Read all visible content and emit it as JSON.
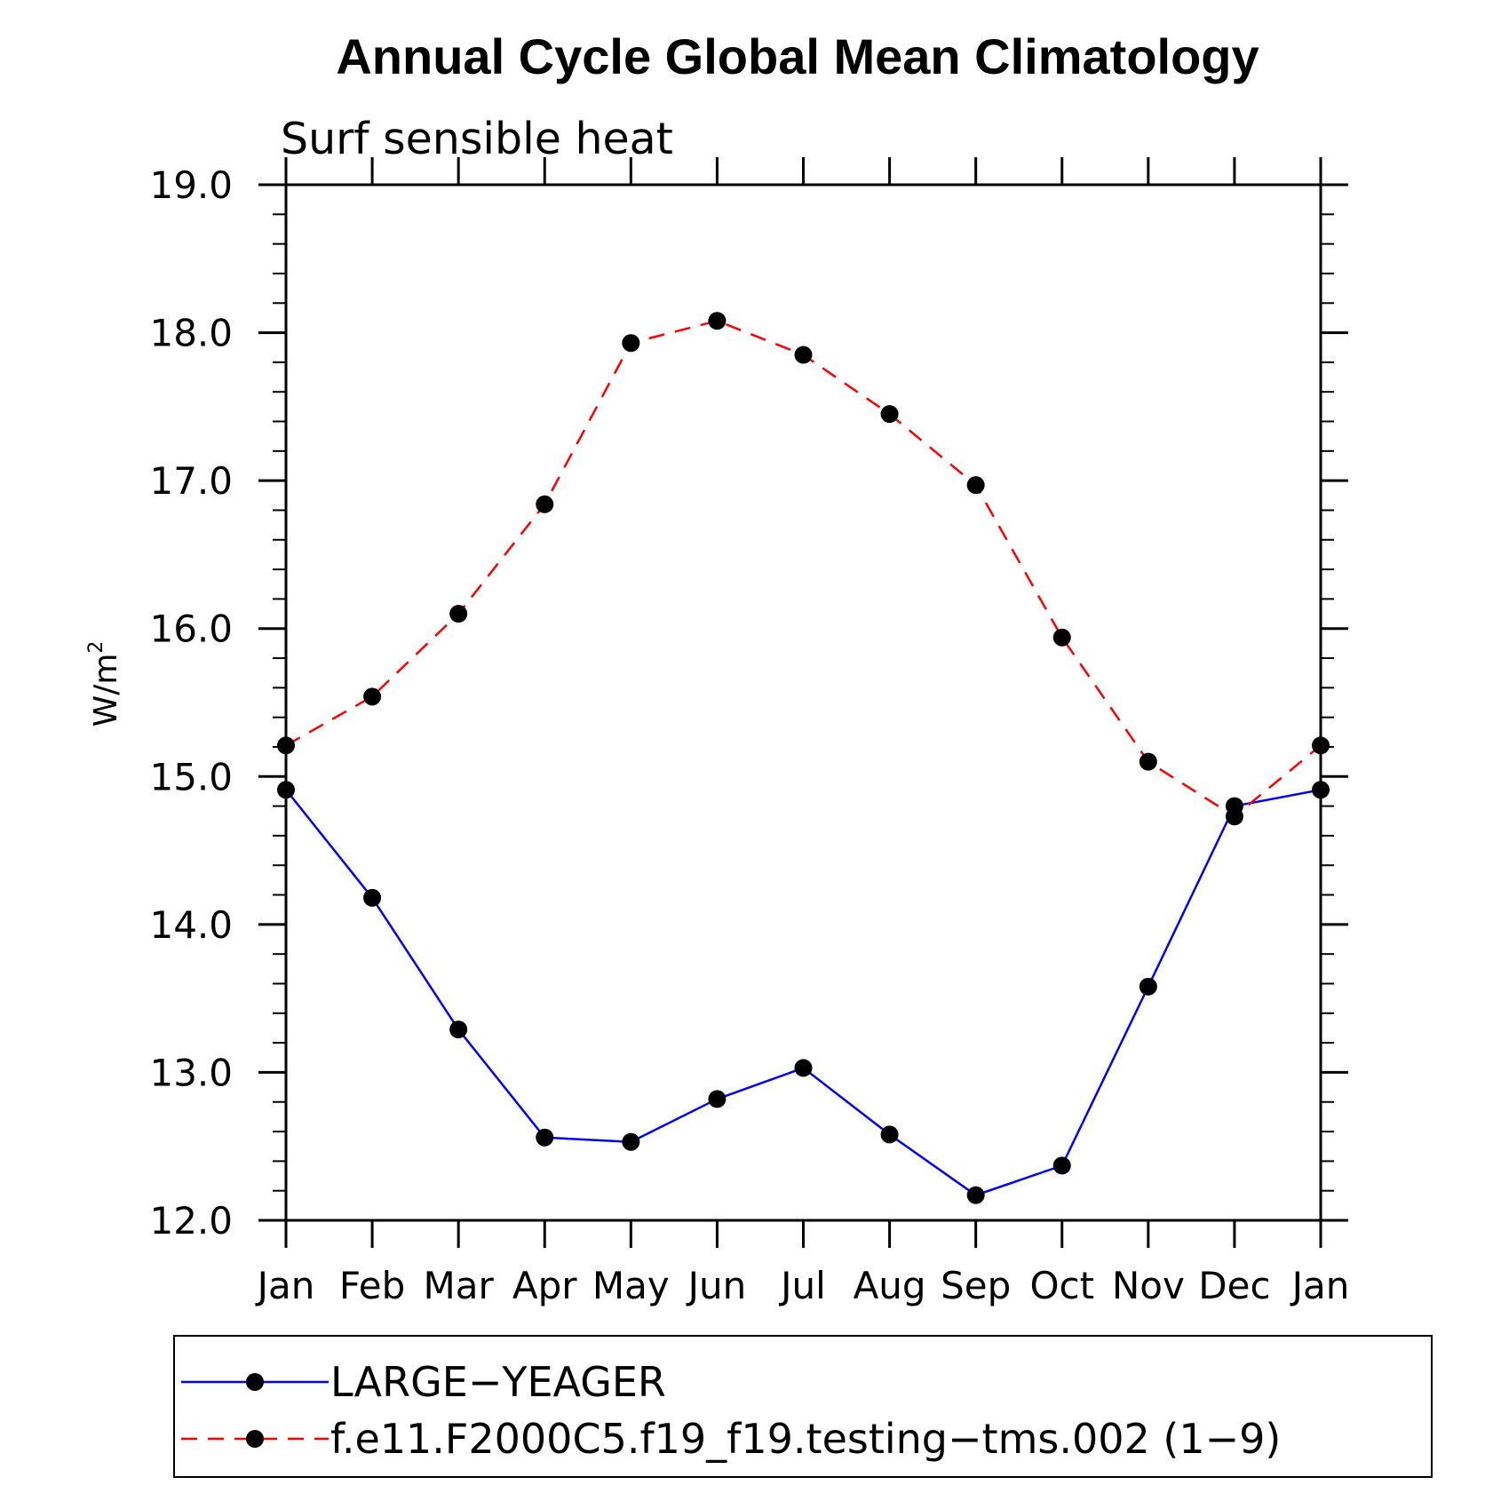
{
  "chart_data": {
    "type": "line",
    "title": "Annual Cycle Global Mean Climatology",
    "subtitle": "Surf sensible heat",
    "ylabel_base": "W/m",
    "ylabel_sup": "2",
    "xlabel": "",
    "categories": [
      "Jan",
      "Feb",
      "Mar",
      "Apr",
      "May",
      "Jun",
      "Jul",
      "Aug",
      "Sep",
      "Oct",
      "Nov",
      "Dec",
      "Jan"
    ],
    "ylim": [
      12.0,
      19.0
    ],
    "yticks": [
      "12.0",
      "13.0",
      "14.0",
      "15.0",
      "16.0",
      "17.0",
      "18.0",
      "19.0"
    ],
    "series": [
      {
        "name": "LARGE−YEAGER",
        "color": "#0000ff",
        "style": "solid",
        "values": [
          14.91,
          14.18,
          13.29,
          12.56,
          12.53,
          12.82,
          13.03,
          12.58,
          12.17,
          12.37,
          13.58,
          14.8,
          14.91
        ]
      },
      {
        "name": "f.e11.F2000C5.f19_f19.testing−tms.002 (1−9)",
        "color": "#ff0000",
        "style": "dashed",
        "values": [
          15.21,
          15.54,
          16.1,
          16.84,
          17.93,
          18.08,
          17.85,
          17.45,
          16.97,
          15.94,
          15.1,
          14.73,
          15.21
        ]
      }
    ],
    "legend_position": "bottom",
    "marker_color": "#000000"
  }
}
